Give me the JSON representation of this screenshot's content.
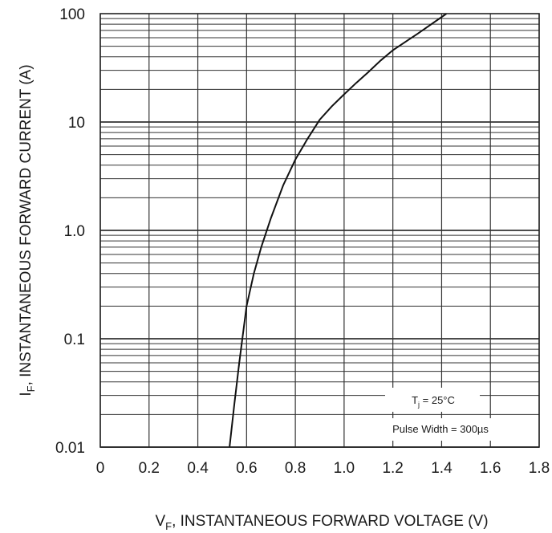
{
  "chart_data": {
    "type": "line",
    "x_scale": "linear",
    "y_scale": "log",
    "xlim": [
      0,
      1.8
    ],
    "ylim": [
      0.01,
      100
    ],
    "grid": true,
    "x_ticks": [
      "0",
      "0.2",
      "0.4",
      "0.6",
      "0.8",
      "1.0",
      "1.2",
      "1.4",
      "1.6",
      "1.8"
    ],
    "y_ticks": [
      "0.01",
      "0.1",
      "1.0",
      "10",
      "100"
    ],
    "x_tick_values": [
      0,
      0.2,
      0.4,
      0.6,
      0.8,
      1.0,
      1.2,
      1.4,
      1.6,
      1.8
    ],
    "y_tick_values": [
      0.01,
      0.1,
      1,
      10,
      100
    ],
    "xlabel": {
      "main": "V",
      "sub": "F",
      "rest": ", INSTANTANEOUS FORWARD VOLTAGE (V)"
    },
    "ylabel": {
      "main": "I",
      "sub": "F",
      "rest": ", INSTANTANEOUS FORWARD CURRENT (A)"
    },
    "annotations": {
      "temperature": {
        "main": "T",
        "sub": "j",
        "rest": " = 25°C"
      },
      "pulse_width": "Pulse Width = 300µs"
    },
    "series": [
      {
        "x": [
          0.53,
          0.55,
          0.57,
          0.6,
          0.63,
          0.66,
          0.7,
          0.75,
          0.8,
          0.85,
          0.9,
          0.95,
          1.0,
          1.05,
          1.1,
          1.15,
          1.2,
          1.3,
          1.42
        ],
        "y": [
          0.01,
          0.025,
          0.06,
          0.2,
          0.4,
          0.7,
          1.3,
          2.6,
          4.5,
          7.0,
          10.5,
          14.0,
          18.0,
          23.0,
          29.0,
          37.0,
          46.0,
          65.0,
          100.0
        ]
      }
    ]
  }
}
